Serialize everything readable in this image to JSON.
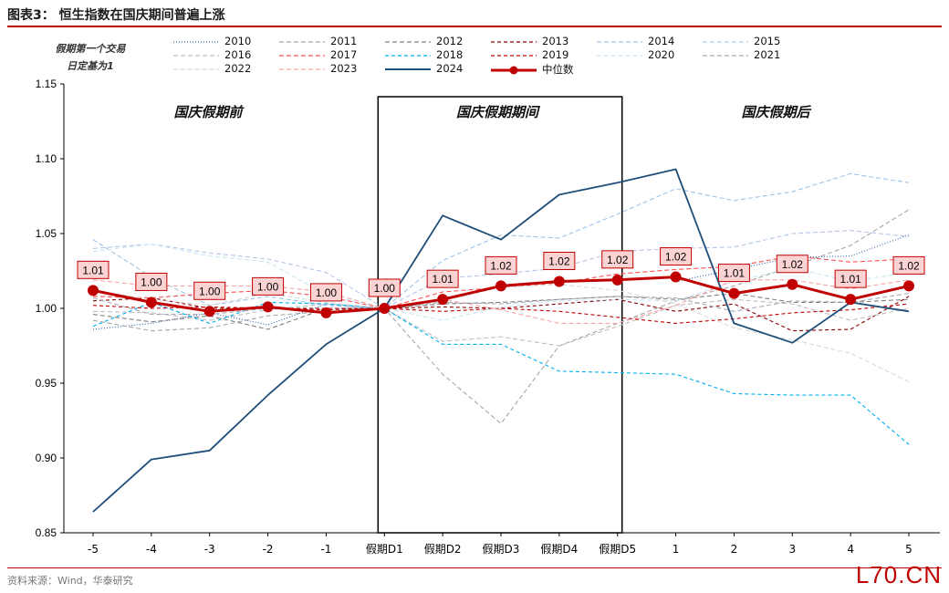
{
  "title": "图表3：  恒生指数在国庆期间普遍上涨",
  "note_lines": [
    "假期第一个交易",
    "日定基为1"
  ],
  "source": "资料来源：Wind，华泰研究",
  "watermark": "L70.CN",
  "colors": {
    "accent": "#c00000",
    "box": "#000000",
    "y2024": "#1f4e79",
    "median": "#c00000"
  },
  "chart_data": {
    "type": "line",
    "categories": [
      "-5",
      "-4",
      "-3",
      "-2",
      "-1",
      "假期D1",
      "假期D2",
      "假期D3",
      "假期D4",
      "假期D5",
      "1",
      "2",
      "3",
      "4",
      "5"
    ],
    "ylim": [
      0.85,
      1.15
    ],
    "yticks": [
      "0.85",
      "0.90",
      "0.95",
      "1.00",
      "1.05",
      "1.10",
      "1.15"
    ],
    "grid": false,
    "legend_position": "top",
    "holiday_box": {
      "from": "假期D1",
      "to": "假期D5"
    },
    "section_labels": [
      "国庆假期前",
      "国庆假期期间",
      "国庆假期后"
    ],
    "series": [
      {
        "name": "2010",
        "color": "#2e5fa8",
        "dash": "1,2",
        "values": [
          0.986,
          0.99,
          0.997,
          0.989,
          1.003,
          1.0,
          null,
          null,
          null,
          null,
          1.018,
          1.026,
          1.034,
          1.035,
          1.049
        ]
      },
      {
        "name": "2011",
        "color": "#a6a6a6",
        "dash": "5,3",
        "values": [
          0.992,
          0.985,
          0.987,
          0.995,
          0.998,
          1.0,
          0.956,
          0.923,
          0.975,
          0.99,
          1.005,
          1.015,
          1.028,
          1.042,
          1.066
        ]
      },
      {
        "name": "2012",
        "color": "#808080",
        "dash": "5,3",
        "values": [
          0.996,
          0.991,
          0.995,
          0.986,
          1.0,
          1.0,
          1.003,
          1.004,
          1.006,
          1.008,
          1.006,
          1.01,
          1.004,
          1.004,
          1.006
        ]
      },
      {
        "name": "2013",
        "color": "#8b0000",
        "dash": "4,3",
        "values": [
          1.005,
          1.007,
          1.0,
          1.0,
          1.0,
          1.0,
          1.001,
          1.0,
          1.003,
          1.006,
          0.998,
          1.003,
          0.985,
          0.986,
          1.008
        ]
      },
      {
        "name": "2014",
        "color": "#9dc3e6",
        "dash": "5,3",
        "values": [
          1.046,
          1.021,
          1.002,
          1.008,
          1.002,
          1.0,
          1.032,
          1.049,
          1.047,
          1.063,
          1.08,
          1.072,
          1.078,
          1.09,
          1.084
        ]
      },
      {
        "name": "2015",
        "color": "#b4c7e7",
        "dash": "5,3",
        "values": [
          1.04,
          1.043,
          1.037,
          1.033,
          1.024,
          1.0,
          1.02,
          1.023,
          1.027,
          1.038,
          1.04,
          1.041,
          1.05,
          1.052,
          1.048
        ]
      },
      {
        "name": "2016",
        "color": "#bfbfbf",
        "dash": "5,3",
        "values": [
          0.998,
          0.997,
          0.992,
          0.999,
          1.003,
          1.0,
          0.978,
          0.981,
          0.975,
          0.988,
          1.002,
          1.006,
          1.003,
          0.992,
          1.0
        ]
      },
      {
        "name": "2017",
        "color": "#ff5050",
        "dash": "5,3",
        "values": [
          1.008,
          1.007,
          1.01,
          1.012,
          1.008,
          1.0,
          1.011,
          1.014,
          1.017,
          1.023,
          1.026,
          1.028,
          1.035,
          1.031,
          1.033
        ]
      },
      {
        "name": "2018",
        "color": "#00b0f0",
        "dash": "4,3",
        "values": [
          0.988,
          1.004,
          0.99,
          1.004,
          1.003,
          1.0,
          0.976,
          0.976,
          0.958,
          0.957,
          0.956,
          0.943,
          0.942,
          0.942,
          0.909
        ]
      },
      {
        "name": "2019",
        "color": "#c00000",
        "dash": "4,3",
        "values": [
          1.002,
          1.0,
          1.001,
          1.0,
          0.999,
          1.0,
          0.998,
          1.0,
          0.998,
          0.994,
          0.99,
          0.993,
          0.997,
          0.999,
          1.003
        ]
      },
      {
        "name": "2020",
        "color": "#c9e7f5",
        "dash": "5,3",
        "values": [
          1.038,
          1.043,
          1.035,
          1.031,
          1.009,
          1.0,
          0.992,
          1.001,
          1.005,
          1.006,
          1.005,
          1.018,
          1.027,
          1.018,
          1.024
        ]
      },
      {
        "name": "2021",
        "color": "#a9a9b8",
        "dash": "5,3",
        "values": [
          1.007,
          0.996,
          0.996,
          1.0,
          0.998,
          1.0,
          1.004,
          1.003,
          1.006,
          1.008,
          1.007,
          0.998,
          1.005,
          1.004,
          1.01
        ]
      },
      {
        "name": "2022",
        "color": "#d9d9d9",
        "dash": "5,3",
        "values": [
          1.012,
          1.006,
          1.002,
          1.01,
          1.004,
          1.0,
          1.005,
          1.014,
          1.016,
          1.012,
          1.003,
          0.987,
          0.979,
          0.97,
          0.951
        ]
      },
      {
        "name": "2023",
        "color": "#f4a6a6",
        "dash": "5,3",
        "values": [
          1.019,
          1.015,
          1.015,
          1.015,
          1.011,
          1.0,
          1.006,
          0.999,
          0.99,
          0.99,
          1.002,
          1.019,
          1.019,
          1.013,
          1.019
        ]
      },
      {
        "name": "2024",
        "color": "#1f4e79",
        "dash": "",
        "values": [
          0.864,
          0.899,
          0.905,
          0.942,
          0.976,
          1.0,
          1.062,
          1.046,
          1.076,
          1.084,
          1.093,
          0.99,
          0.977,
          1.004,
          0.998
        ]
      },
      {
        "name": "中位数",
        "color": "#c00000",
        "dash": "",
        "marker": true,
        "values": [
          1.012,
          1.004,
          0.998,
          1.001,
          0.997,
          1.0,
          1.006,
          1.015,
          1.018,
          1.019,
          1.021,
          1.01,
          1.016,
          1.006,
          1.015
        ],
        "labels": [
          "1.01",
          "1.00",
          "1.00",
          "1.00",
          "1.00",
          "1.00",
          "1.01",
          "1.02",
          "1.02",
          "1.02",
          "1.02",
          "1.01",
          "1.02",
          "1.01",
          "1.02"
        ]
      }
    ]
  }
}
